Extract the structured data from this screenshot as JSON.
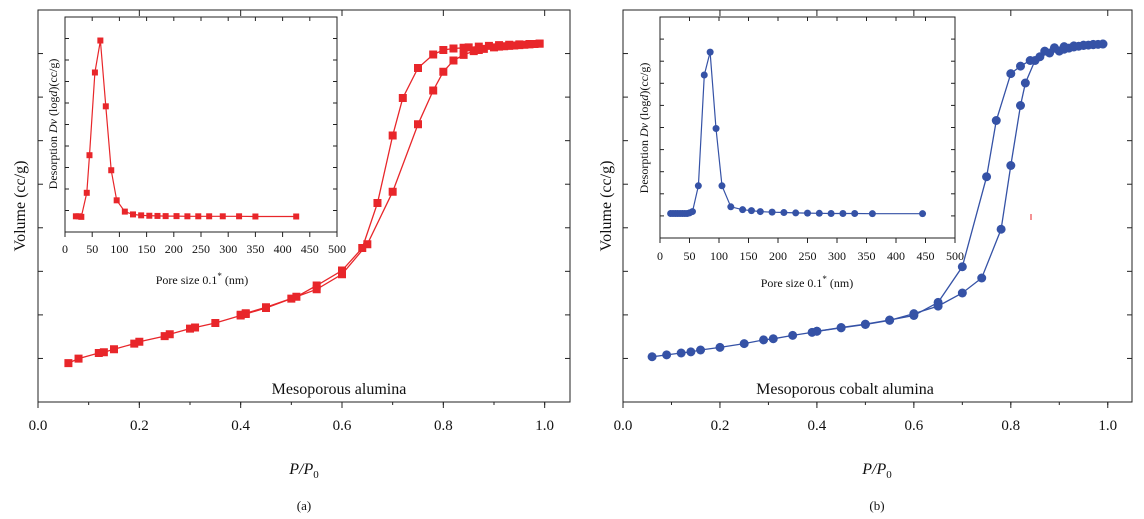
{
  "colors": {
    "panel_a": "#e8262a",
    "panel_b": "#3552a6",
    "axis": "#222222"
  },
  "chart_data": [
    {
      "panel": "(a)",
      "type": "line",
      "marker": "square",
      "ylabel": "Volume (cc/g)",
      "xlabel_main": "P/P",
      "xlabel_sub": "0",
      "annotation": "Mesoporous alumina",
      "xlim": [
        0.0,
        1.05
      ],
      "ylim": [
        0,
        1
      ],
      "y_ticks_labeled": false,
      "xticks": [
        "0.0",
        "0.2",
        "0.4",
        "0.6",
        "0.8",
        "1.0"
      ],
      "series": [
        {
          "x": [
            0.06,
            0.08,
            0.12,
            0.13,
            0.15,
            0.19,
            0.2,
            0.25,
            0.26,
            0.3,
            0.31,
            0.35,
            0.4,
            0.41,
            0.45,
            0.5,
            0.55,
            0.6,
            0.65,
            0.7,
            0.75,
            0.78,
            0.8,
            0.82,
            0.84,
            0.86,
            0.87,
            0.88,
            0.9,
            0.91,
            0.92,
            0.93,
            0.94,
            0.95,
            0.96,
            0.97,
            0.98,
            0.99
          ],
          "y": [
            0.093,
            0.105,
            0.12,
            0.122,
            0.13,
            0.145,
            0.15,
            0.165,
            0.17,
            0.185,
            0.188,
            0.2,
            0.22,
            0.224,
            0.24,
            0.265,
            0.29,
            0.33,
            0.41,
            0.55,
            0.73,
            0.82,
            0.87,
            0.9,
            0.915,
            0.925,
            0.928,
            0.931,
            0.935,
            0.937,
            0.938,
            0.939,
            0.94,
            0.941,
            0.942,
            0.943,
            0.944,
            0.945
          ]
        },
        {
          "x": [
            0.99,
            0.97,
            0.95,
            0.93,
            0.91,
            0.89,
            0.87,
            0.85,
            0.84,
            0.82,
            0.8,
            0.78,
            0.75,
            0.72,
            0.7,
            0.67,
            0.64,
            0.6,
            0.55,
            0.51,
            0.45,
            0.41,
            0.4
          ],
          "y": [
            0.945,
            0.944,
            0.943,
            0.942,
            0.941,
            0.939,
            0.937,
            0.935,
            0.934,
            0.932,
            0.928,
            0.916,
            0.88,
            0.8,
            0.7,
            0.52,
            0.4,
            0.34,
            0.3,
            0.27,
            0.242,
            0.226,
            0.222
          ]
        }
      ],
      "inset": {
        "xlabel": "Pore size 0.1",
        "xlabel_sup": "*",
        "xlabel_unit": " (nm)",
        "ylabel_prefix": "Desorption ",
        "ylabel_italic1": "Dv",
        "ylabel_mid": " (log",
        "ylabel_italic2": "d",
        "ylabel_suffix": ")(cc/g)",
        "xlim": [
          0,
          500
        ],
        "ylim": [
          0,
          1
        ],
        "xticks": [
          "0",
          "50",
          "100",
          "150",
          "200",
          "250",
          "300",
          "350",
          "400",
          "450",
          "500"
        ],
        "x": [
          20,
          25,
          30,
          40,
          45,
          55,
          65,
          75,
          85,
          95,
          110,
          125,
          140,
          155,
          170,
          185,
          205,
          225,
          245,
          265,
          290,
          320,
          350,
          425
        ],
        "y": [
          0.025,
          0.025,
          0.022,
          0.15,
          0.35,
          0.79,
          0.96,
          0.61,
          0.27,
          0.11,
          0.05,
          0.035,
          0.03,
          0.028,
          0.027,
          0.026,
          0.026,
          0.025,
          0.025,
          0.025,
          0.025,
          0.025,
          0.024,
          0.024
        ]
      }
    },
    {
      "panel": "(b)",
      "type": "line",
      "marker": "circle",
      "ylabel": "Volume (cc/g)",
      "xlabel_main": "P/P",
      "xlabel_sub": "0",
      "annotation": "Mesoporous cobalt alumina",
      "xlim": [
        0.0,
        1.05
      ],
      "ylim": [
        0,
        1
      ],
      "y_ticks_labeled": false,
      "xticks": [
        "0.0",
        "0.2",
        "0.4",
        "0.6",
        "0.8",
        "1.0"
      ],
      "series": [
        {
          "x": [
            0.06,
            0.09,
            0.12,
            0.14,
            0.16,
            0.2,
            0.25,
            0.29,
            0.31,
            0.35,
            0.39,
            0.4,
            0.45,
            0.5,
            0.55,
            0.6,
            0.65,
            0.7,
            0.75,
            0.77,
            0.8,
            0.82,
            0.84,
            0.86,
            0.88,
            0.9,
            0.91,
            0.92,
            0.93,
            0.94,
            0.95,
            0.96,
            0.97,
            0.98,
            0.99
          ],
          "y": [
            0.11,
            0.115,
            0.12,
            0.123,
            0.128,
            0.135,
            0.145,
            0.155,
            0.158,
            0.167,
            0.175,
            0.178,
            0.188,
            0.197,
            0.208,
            0.22,
            0.255,
            0.35,
            0.59,
            0.74,
            0.865,
            0.885,
            0.9,
            0.91,
            0.92,
            0.925,
            0.93,
            0.933,
            0.936,
            0.938,
            0.94,
            0.941,
            0.942,
            0.943,
            0.944
          ]
        },
        {
          "x": [
            0.99,
            0.97,
            0.95,
            0.93,
            0.91,
            0.89,
            0.87,
            0.85,
            0.83,
            0.82,
            0.8,
            0.78,
            0.74,
            0.7,
            0.65,
            0.6,
            0.55,
            0.5,
            0.45,
            0.4
          ],
          "y": [
            0.944,
            0.943,
            0.941,
            0.939,
            0.937,
            0.934,
            0.925,
            0.9,
            0.84,
            0.78,
            0.62,
            0.45,
            0.32,
            0.28,
            0.245,
            0.225,
            0.207,
            0.196,
            0.187,
            0.178
          ]
        }
      ],
      "inset": {
        "xlabel": "Pore size 0.1",
        "xlabel_sup": "*",
        "xlabel_unit": " (nm)",
        "ylabel_prefix": "Desorption ",
        "ylabel_italic1": "Dv",
        "ylabel_mid": " (log",
        "ylabel_italic2": "d",
        "ylabel_suffix": ")(cc/g)",
        "xlim": [
          0,
          500
        ],
        "ylim": [
          0,
          1
        ],
        "xticks": [
          "0",
          "50",
          "100",
          "150",
          "200",
          "250",
          "300",
          "350",
          "400",
          "450",
          "500"
        ],
        "x": [
          18,
          22,
          26,
          30,
          34,
          38,
          42,
          46,
          50,
          55,
          65,
          75,
          85,
          95,
          105,
          120,
          140,
          155,
          170,
          190,
          210,
          230,
          250,
          270,
          290,
          310,
          330,
          360,
          445
        ],
        "y": [
          0.055,
          0.055,
          0.055,
          0.055,
          0.055,
          0.055,
          0.055,
          0.055,
          0.058,
          0.065,
          0.2,
          0.78,
          0.9,
          0.5,
          0.2,
          0.09,
          0.075,
          0.07,
          0.065,
          0.062,
          0.06,
          0.058,
          0.057,
          0.056,
          0.055,
          0.055,
          0.055,
          0.054,
          0.054
        ]
      }
    }
  ]
}
